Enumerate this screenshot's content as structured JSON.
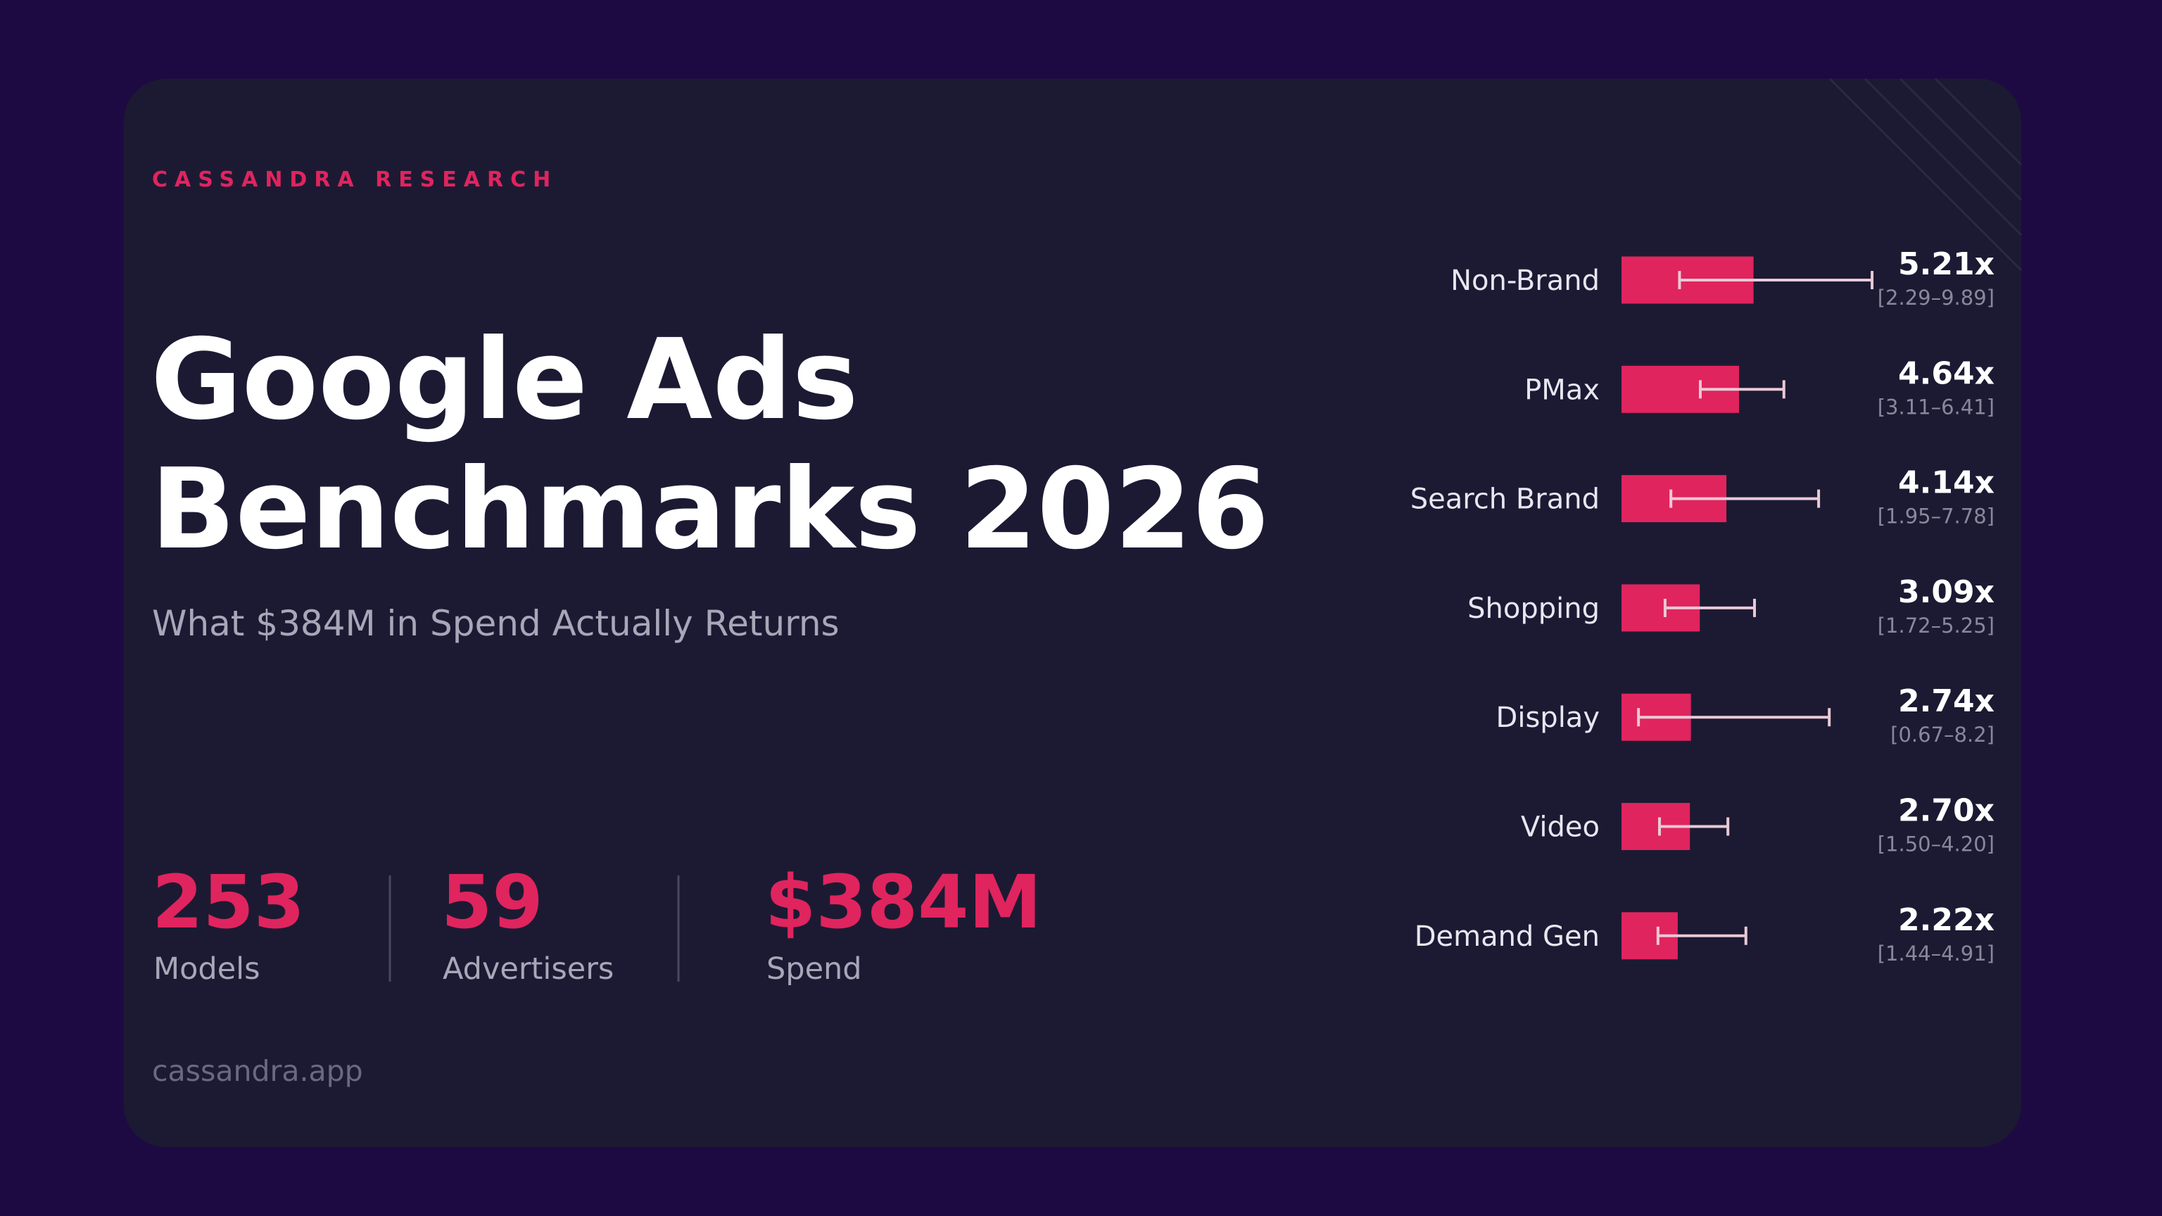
{
  "brand": "CASSANDRA RESEARCH",
  "title_lines": [
    "Google Ads",
    "Benchmarks 2026"
  ],
  "subtitle": "What $384M in Spend Actually Returns",
  "stats": [
    {
      "value": "253",
      "label": "Models"
    },
    {
      "value": "59",
      "label": "Advertisers"
    },
    {
      "value": "$384M",
      "label": "Spend"
    }
  ],
  "footer": "cassandra.app",
  "chart_data": {
    "type": "bar",
    "orientation": "horizontal",
    "color": "#e0245e",
    "categories": [
      "Non-Brand",
      "PMax",
      "Search Brand",
      "Shopping",
      "Display",
      "Video",
      "Demand Gen"
    ],
    "values": [
      5.21,
      4.64,
      4.14,
      3.09,
      2.74,
      2.7,
      2.22
    ],
    "value_labels": [
      "5.21x",
      "4.64x",
      "4.14x",
      "3.09x",
      "2.74x",
      "2.70x",
      "2.22x"
    ],
    "lower": [
      2.29,
      3.11,
      1.95,
      1.72,
      0.67,
      1.5,
      1.44
    ],
    "upper": [
      9.89,
      6.41,
      7.78,
      5.25,
      8.2,
      4.2,
      4.91
    ],
    "interval_labels": [
      "[2.29–9.89]",
      "[3.11–6.41]",
      "[1.95–7.78]",
      "[1.72–5.25]",
      "[0.67–8.2]",
      "[1.50–4.20]",
      "[1.44–4.91]"
    ]
  }
}
